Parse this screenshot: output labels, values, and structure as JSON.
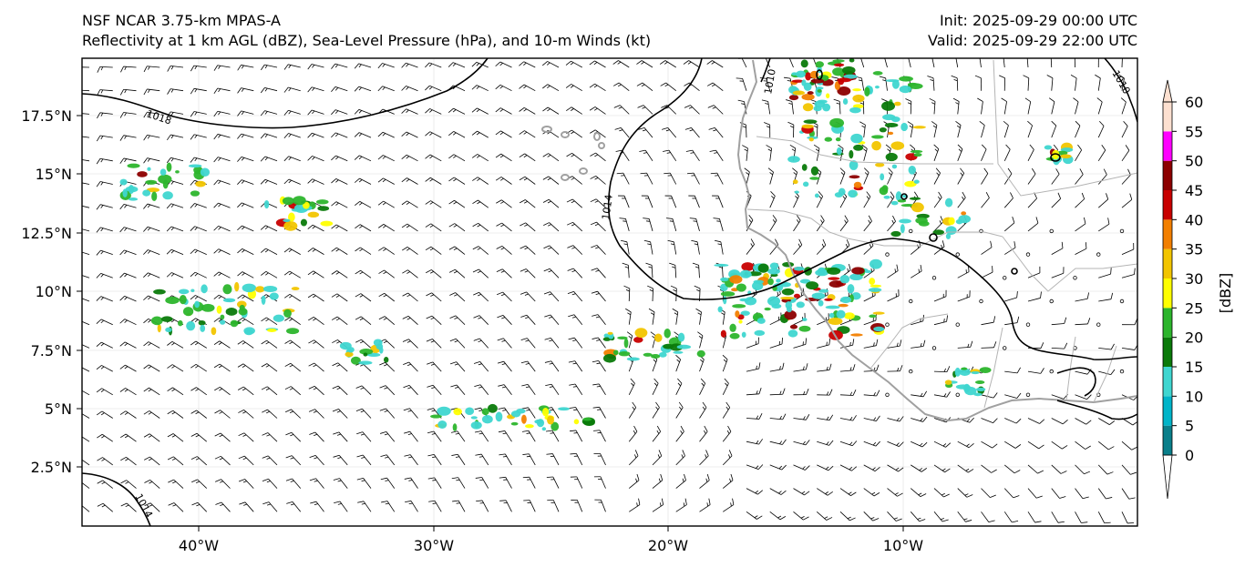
{
  "header": {
    "left_line1": "NSF NCAR 3.75-km MPAS-A",
    "left_line2": "Reflectivity at 1 km AGL (dBZ), Sea-Level Pressure (hPa), and 10-m Winds (kt)",
    "right_line1": "Init: 2025-09-29 00:00 UTC",
    "right_line2": "Valid: 2025-09-29 22:00 UTC"
  },
  "map": {
    "lon_ticks": [
      "40°W",
      "30°W",
      "20°W",
      "10°W"
    ],
    "lat_ticks": [
      "17.5°N",
      "15°N",
      "12.5°N",
      "10°N",
      "7.5°N",
      "5°N",
      "2.5°N"
    ],
    "pressure_contour_labels": [
      "1018",
      "1014",
      "1010",
      "1010",
      "1014"
    ]
  },
  "colorbar": {
    "label": "[dBZ]",
    "ticks": [
      "0",
      "5",
      "10",
      "15",
      "20",
      "25",
      "30",
      "35",
      "40",
      "45",
      "50",
      "55",
      "60"
    ],
    "colors": [
      "#ffffff",
      "#0a7f8a",
      "#00b4c8",
      "#3fd6d0",
      "#0a7a0a",
      "#2cb52c",
      "#ffff00",
      "#f2c500",
      "#f27f00",
      "#c80000",
      "#8c0000",
      "#ff00ff",
      "#fde0d0"
    ]
  },
  "colors": {
    "coastline": "#a0a0a0",
    "border": "#b4b4b4",
    "contour": "#000000",
    "barb": "#000000"
  }
}
